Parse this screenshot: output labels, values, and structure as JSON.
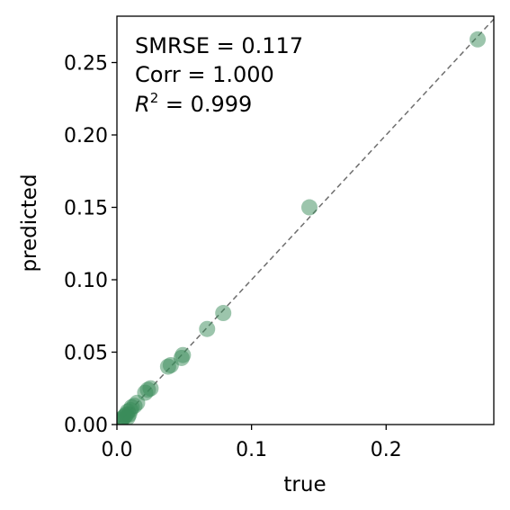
{
  "chart_data": {
    "type": "scatter",
    "title": "",
    "xlabel": "true",
    "ylabel": "predicted",
    "xlim": [
      0.0,
      0.28
    ],
    "ylim": [
      0.0,
      0.282
    ],
    "x_ticks": [
      0.0,
      0.1,
      0.2
    ],
    "x_tick_labels": [
      "0.0",
      "0.1",
      "0.2"
    ],
    "y_ticks": [
      0.0,
      0.05,
      0.1,
      0.15,
      0.2,
      0.25
    ],
    "y_tick_labels": [
      "0.00",
      "0.05",
      "0.10",
      "0.15",
      "0.20",
      "0.25"
    ],
    "grid": false,
    "reference_line": {
      "style": "dashed",
      "color": "#6e6e6e",
      "from": [
        0.0,
        0.0
      ],
      "to": [
        0.28,
        0.28
      ]
    },
    "annotations": {
      "smrse": "SMRSE = 0.117",
      "corr": "Corr = 1.000",
      "r2_symbol": "R",
      "r2_exponent": "2",
      "r2_value": " = 0.999"
    },
    "point_color": "#3a8c5a",
    "points": [
      {
        "x": 0.268,
        "y": 0.266
      },
      {
        "x": 0.143,
        "y": 0.15
      },
      {
        "x": 0.079,
        "y": 0.077
      },
      {
        "x": 0.067,
        "y": 0.066
      },
      {
        "x": 0.049,
        "y": 0.048
      },
      {
        "x": 0.048,
        "y": 0.046
      },
      {
        "x": 0.04,
        "y": 0.041
      },
      {
        "x": 0.038,
        "y": 0.04
      },
      {
        "x": 0.025,
        "y": 0.025
      },
      {
        "x": 0.023,
        "y": 0.024
      },
      {
        "x": 0.021,
        "y": 0.022
      },
      {
        "x": 0.015,
        "y": 0.015
      },
      {
        "x": 0.013,
        "y": 0.013
      },
      {
        "x": 0.011,
        "y": 0.012
      },
      {
        "x": 0.01,
        "y": 0.01
      },
      {
        "x": 0.008,
        "y": 0.009
      },
      {
        "x": 0.007,
        "y": 0.007
      },
      {
        "x": 0.006,
        "y": 0.006
      },
      {
        "x": 0.005,
        "y": 0.005
      },
      {
        "x": 0.004,
        "y": 0.004
      },
      {
        "x": 0.003,
        "y": 0.003
      },
      {
        "x": 0.002,
        "y": 0.002
      },
      {
        "x": 0.008,
        "y": 0.005
      },
      {
        "x": 0.009,
        "y": 0.007
      }
    ]
  }
}
